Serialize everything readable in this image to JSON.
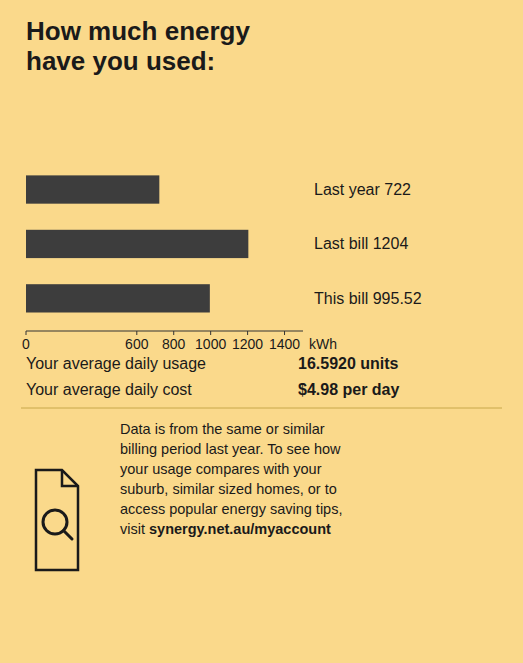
{
  "chart_data": {
    "type": "bar",
    "orientation": "horizontal",
    "title": "How much energy\nhave you used:",
    "categories": [
      "Last year 722",
      "Last bill 1204",
      "This bill 995.52"
    ],
    "values": [
      722,
      1204,
      995.52
    ],
    "color": "#3d3d3d",
    "xlim": [
      0,
      1500
    ],
    "xticks": [
      0,
      600,
      800,
      1000,
      1200,
      1400
    ],
    "x_label": "kWh",
    "grid": false,
    "annotations": [
      "Your average daily usage",
      "16.5920 units",
      "Your average daily cost",
      "$4.98 per day",
      "Data is from the same or similar\nbilling period last year. To see how\nyour usage compares with your\nsuburb, similar sized homes, or to\naccess popular energy saving tips,\nvisit ",
      "synergy.net.au/myaccount"
    ]
  }
}
